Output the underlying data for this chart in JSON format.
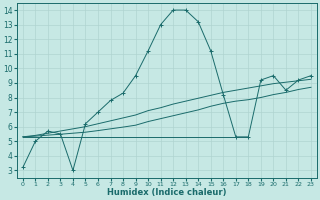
{
  "xlabel": "Humidex (Indice chaleur)",
  "xlim": [
    -0.5,
    23.5
  ],
  "ylim": [
    2.5,
    14.5
  ],
  "xticks": [
    0,
    1,
    2,
    3,
    4,
    5,
    6,
    7,
    8,
    9,
    10,
    11,
    12,
    13,
    14,
    15,
    16,
    17,
    18,
    19,
    20,
    21,
    22,
    23
  ],
  "yticks": [
    3,
    4,
    5,
    6,
    7,
    8,
    9,
    10,
    11,
    12,
    13,
    14
  ],
  "bg_color": "#c6e8e4",
  "line_color": "#1a6b6b",
  "grid_color": "#b0d4d0",
  "line1_x": [
    0,
    1,
    2,
    3,
    4,
    5,
    6,
    7,
    8,
    9,
    10,
    11,
    12,
    13,
    14,
    15,
    16,
    17,
    18,
    19,
    20,
    21,
    22,
    23
  ],
  "line1_y": [
    3.2,
    5.0,
    5.7,
    5.5,
    3.0,
    6.2,
    7.0,
    7.8,
    8.3,
    9.5,
    11.2,
    13.0,
    14.0,
    14.0,
    13.2,
    11.2,
    8.2,
    5.3,
    5.3,
    9.2,
    9.5,
    8.5,
    9.2,
    9.5
  ],
  "line2_x": [
    0,
    1,
    2,
    3,
    4,
    5,
    6,
    7,
    8,
    9,
    10,
    11,
    12,
    13,
    14,
    15,
    16,
    17,
    18,
    19,
    20,
    21,
    22,
    23
  ],
  "line2_y": [
    5.3,
    5.35,
    5.42,
    5.48,
    5.55,
    5.62,
    5.73,
    5.85,
    5.97,
    6.1,
    6.35,
    6.55,
    6.75,
    6.95,
    7.15,
    7.4,
    7.6,
    7.75,
    7.85,
    8.0,
    8.2,
    8.35,
    8.55,
    8.7
  ],
  "line3_x": [
    0,
    1,
    2,
    3,
    4,
    5,
    6,
    7,
    8,
    9,
    10,
    11,
    12,
    13,
    14,
    15,
    16,
    17,
    18,
    19,
    20,
    21,
    22,
    23
  ],
  "line3_y": [
    5.3,
    5.4,
    5.55,
    5.7,
    5.85,
    6.0,
    6.2,
    6.4,
    6.6,
    6.8,
    7.1,
    7.3,
    7.55,
    7.75,
    7.95,
    8.15,
    8.35,
    8.5,
    8.65,
    8.8,
    8.95,
    9.05,
    9.15,
    9.25
  ],
  "line4_x": [
    0,
    1,
    2,
    3,
    4,
    5,
    6,
    7,
    8,
    9,
    10,
    11,
    12,
    13,
    14,
    15,
    16,
    17,
    18
  ],
  "line4_y": [
    5.3,
    5.3,
    5.3,
    5.3,
    5.3,
    5.3,
    5.3,
    5.3,
    5.3,
    5.3,
    5.3,
    5.3,
    5.3,
    5.3,
    5.3,
    5.3,
    5.3,
    5.3,
    5.3
  ]
}
